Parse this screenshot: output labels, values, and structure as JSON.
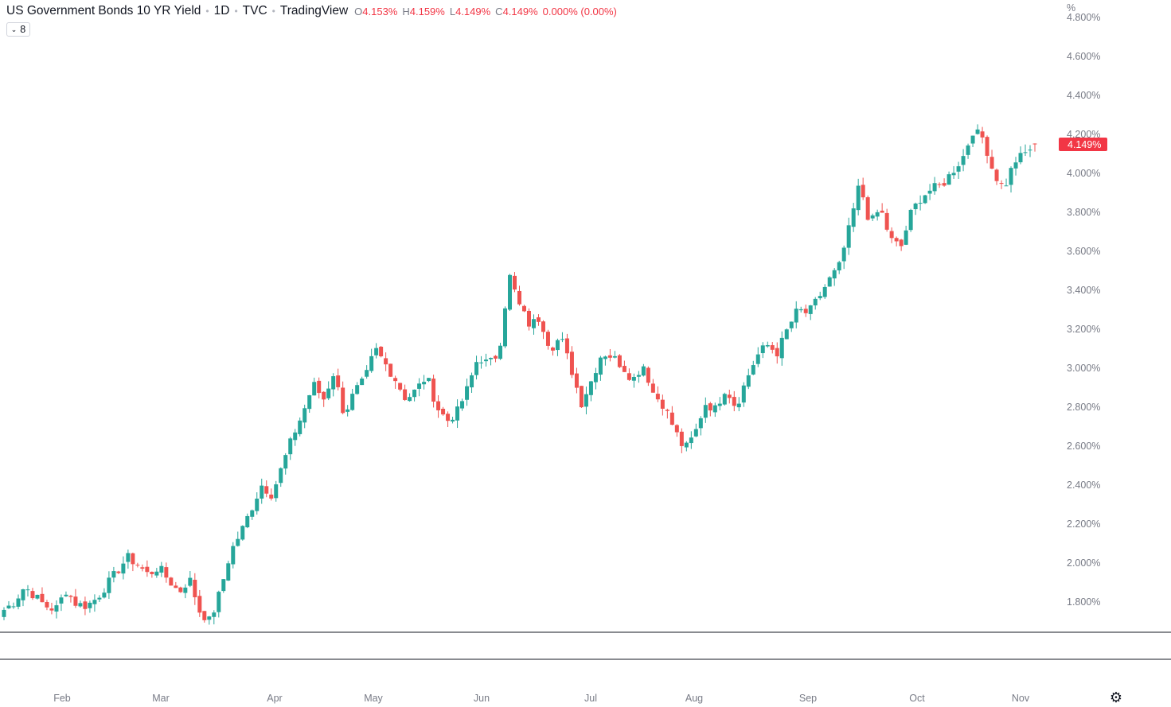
{
  "header": {
    "symbol_title": "US Government Bonds 10 YR Yield",
    "interval": "1D",
    "exchange": "TVC",
    "source": "TradingView",
    "ohlc": {
      "o_label": "O",
      "o_value": "4.153%",
      "h_label": "H",
      "h_value": "4.159%",
      "l_label": "L",
      "l_value": "4.149%",
      "c_label": "C",
      "c_value": "4.149%"
    },
    "change": "0.000% (0.00%)",
    "indicator_count": "8"
  },
  "colors": {
    "up": "#26a69a",
    "down": "#ef5350",
    "price_label_bg": "#f23645",
    "axis_text": "#787b86",
    "separator": "#131722"
  },
  "chart_data": {
    "type": "candlestick",
    "y_unit": "%",
    "ylim": [
      1.65,
      4.85
    ],
    "y_ticks": [
      "4.800%",
      "4.600%",
      "4.400%",
      "4.200%",
      "4.000%",
      "3.800%",
      "3.600%",
      "3.400%",
      "3.200%",
      "3.000%",
      "2.800%",
      "2.600%",
      "2.400%",
      "2.200%",
      "2.000%",
      "1.800%"
    ],
    "x_month_labels": [
      "Feb",
      "Mar",
      "Apr",
      "May",
      "Jun",
      "Jul",
      "Aug",
      "Sep",
      "Oct",
      "Nov"
    ],
    "last_price_label": "4.149%",
    "series_anchor_closes": [
      1.76,
      1.8,
      1.88,
      1.83,
      1.78,
      1.76,
      1.86,
      1.79,
      1.78,
      1.82,
      1.89,
      1.96,
      2.03,
      1.99,
      1.94,
      1.98,
      1.91,
      1.85,
      1.92,
      1.75,
      1.7,
      1.86,
      2.06,
      2.16,
      2.28,
      2.4,
      2.35,
      2.5,
      2.65,
      2.77,
      2.92,
      2.84,
      2.98,
      2.76,
      2.88,
      2.94,
      3.1,
      3.02,
      2.94,
      2.84,
      2.89,
      2.96,
      2.8,
      2.73,
      2.78,
      2.9,
      3.06,
      3.02,
      3.08,
      3.48,
      3.32,
      3.22,
      3.26,
      3.1,
      3.16,
      3.0,
      2.82,
      2.94,
      3.08,
      3.06,
      3.01,
      2.94,
      3.02,
      2.87,
      2.81,
      2.69,
      2.58,
      2.66,
      2.82,
      2.79,
      2.9,
      2.8,
      2.94,
      3.06,
      3.12,
      3.08,
      3.2,
      3.3,
      3.28,
      3.36,
      3.45,
      3.52,
      3.72,
      3.95,
      3.74,
      3.82,
      3.66,
      3.62,
      3.8,
      3.88,
      3.92,
      3.94,
      4.01,
      4.08,
      4.22,
      4.18,
      4.0,
      3.92,
      4.06,
      4.1,
      4.15
    ]
  }
}
